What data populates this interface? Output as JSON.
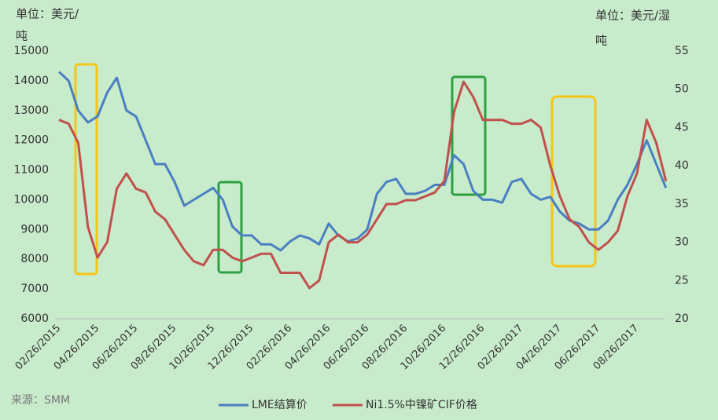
{
  "chart_data": {
    "type": "line",
    "ylabel": [
      "单位：美元/",
      "吨"
    ],
    "y2label": [
      "单位：美元/湿",
      "吨"
    ],
    "source": "来源：SMM",
    "categories": [
      "02/26/2015",
      null,
      null,
      null,
      "04/26/2015",
      null,
      null,
      null,
      "06/26/2015",
      null,
      null,
      null,
      "08/26/2015",
      null,
      null,
      null,
      "10/26/2015",
      null,
      null,
      null,
      "12/26/2015",
      null,
      null,
      null,
      "02/26/2016",
      null,
      null,
      null,
      "04/26/2016",
      null,
      null,
      null,
      "06/26/2016",
      null,
      null,
      null,
      "08/26/2016",
      null,
      null,
      null,
      "10/26/2016",
      null,
      null,
      null,
      "12/26/2016",
      null,
      null,
      null,
      "02/26/2017",
      null,
      null,
      null,
      "04/26/2017",
      null,
      null,
      null,
      "06/26/2017",
      null,
      null,
      null,
      "08/26/2017",
      null,
      null,
      null
    ],
    "series": [
      {
        "name": "LME结算价",
        "color": "#4a7fc1",
        "axis": "y",
        "values": [
          14300,
          14000,
          13000,
          12600,
          12800,
          13600,
          14100,
          13000,
          12800,
          12000,
          11200,
          11200,
          10600,
          9800,
          10000,
          10200,
          10400,
          10000,
          9100,
          8800,
          8800,
          8500,
          8500,
          8300,
          8600,
          8800,
          8700,
          8500,
          9200,
          8800,
          8600,
          8700,
          9000,
          10200,
          10600,
          10700,
          10200,
          10200,
          10300,
          10500,
          10500,
          11500,
          11200,
          10300,
          10000,
          10000,
          9900,
          10600,
          10700,
          10200,
          10000,
          10100,
          9600,
          9300,
          9200,
          9000,
          9000,
          9300,
          10000,
          10500,
          11200,
          12000,
          11200,
          10400
        ]
      },
      {
        "name": "Ni1.5%中镍矿CIF价格",
        "color": "#c0504d",
        "axis": "y2",
        "values": [
          46,
          45.5,
          43,
          32,
          28,
          30,
          37,
          39,
          37,
          36.5,
          34,
          33,
          31,
          29,
          27.5,
          27,
          29,
          29,
          28,
          27.5,
          28,
          28.5,
          28.5,
          26,
          26,
          26,
          24,
          25,
          30,
          31,
          30,
          30,
          31,
          33,
          35,
          35,
          35.5,
          35.5,
          36,
          36.5,
          38,
          47,
          51,
          49,
          46,
          46,
          46,
          45.5,
          45.5,
          46,
          45,
          40,
          36,
          33,
          32,
          30,
          29,
          30,
          31.5,
          36,
          39,
          46,
          43,
          38
        ]
      }
    ],
    "ylim": [
      6000,
      15000
    ],
    "yticks": [
      6000,
      7000,
      8000,
      9000,
      10000,
      11000,
      12000,
      13000,
      14000,
      15000
    ],
    "y2lim": [
      20,
      55
    ],
    "y2ticks": [
      20,
      25,
      30,
      35,
      40,
      45,
      50,
      55
    ],
    "grid": false,
    "legend": "bottom"
  }
}
